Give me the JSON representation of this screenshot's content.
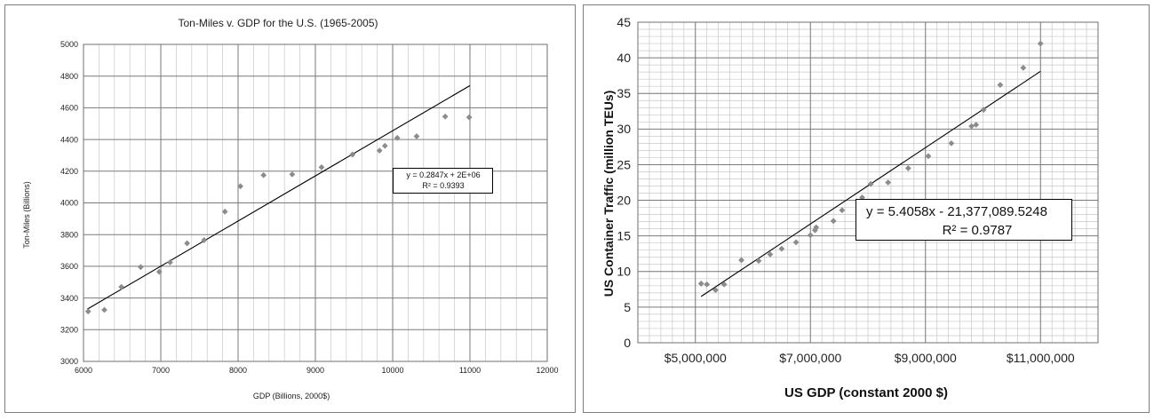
{
  "chart_data": [
    {
      "type": "scatter",
      "title": "Ton-Miles v. GDP for the U.S. (1965-2005)",
      "xlabel": "GDP (Billions, 2000$)",
      "ylabel": "Ton-Miles (Billions)",
      "xlim": [
        6000,
        12000
      ],
      "ylim": [
        3000,
        5000
      ],
      "x_ticks": [
        6000,
        7000,
        8000,
        9000,
        10000,
        11000,
        12000
      ],
      "y_ticks": [
        3000,
        3200,
        3400,
        3600,
        3800,
        4000,
        4200,
        4400,
        4600,
        4800,
        5000
      ],
      "x_tick_labels": [
        "6000",
        "7000",
        "8000",
        "9000",
        "10000",
        "11000",
        "12000"
      ],
      "y_tick_labels": [
        "3000",
        "3200",
        "3400",
        "3600",
        "3800",
        "4000",
        "4200",
        "4400",
        "4600",
        "4800",
        "5000"
      ],
      "grid": true,
      "marker_color": "#8c8c8c",
      "series": [
        {
          "x": [
            6060,
            6270,
            6490,
            6740,
            6980,
            7120,
            7340,
            7560,
            7830,
            8030,
            8330,
            8700,
            9080,
            9480,
            9830,
            9900,
            10060,
            10310,
            10680,
            10990
          ],
          "y": [
            3315,
            3325,
            3470,
            3595,
            3565,
            3625,
            3745,
            3765,
            3945,
            4105,
            4175,
            4180,
            4225,
            4305,
            4330,
            4360,
            4410,
            4420,
            4545,
            4540
          ]
        }
      ],
      "trendline": {
        "x": [
          6050,
          11000
        ],
        "y": [
          3330,
          4740
        ],
        "color": "#000000"
      },
      "annotation": {
        "equation": "y = 0.2847x + 2E+06",
        "r2": "R² = 0.9393"
      }
    },
    {
      "type": "scatter",
      "title": "",
      "xlabel": "US GDP (constant 2000 $)",
      "ylabel": "US Container Traffic (million TEUs)",
      "xlim": [
        4000000,
        12000000
      ],
      "ylim": [
        0,
        45
      ],
      "x_ticks": [
        5000000,
        7000000,
        9000000,
        11000000
      ],
      "y_ticks": [
        0,
        5,
        10,
        15,
        20,
        25,
        30,
        35,
        40,
        45
      ],
      "x_tick_labels": [
        "$5,000,000",
        "$7,000,000",
        "$9,000,000",
        "$11,000,000"
      ],
      "y_tick_labels": [
        "0",
        "5",
        "10",
        "15",
        "20",
        "25",
        "30",
        "35",
        "40",
        "45"
      ],
      "grid": true,
      "marker_color": "#8c8c8c",
      "series": [
        {
          "x": [
            5100000,
            5200000,
            5350000,
            5500000,
            5800000,
            6100000,
            6300000,
            6500000,
            6750000,
            7000000,
            7080000,
            7100000,
            7400000,
            7550000,
            7900000,
            8050000,
            8350000,
            8700000,
            9050000,
            9450000,
            9800000,
            9880000,
            10010000,
            10300000,
            10700000,
            11000000
          ],
          "y": [
            8.3,
            8.2,
            7.4,
            8.2,
            11.6,
            11.5,
            12.4,
            13.2,
            14.1,
            15.1,
            15.8,
            16.2,
            17.1,
            18.6,
            20.4,
            22.3,
            22.5,
            24.5,
            26.2,
            28.0,
            30.4,
            30.6,
            32.7,
            36.2,
            38.6,
            42.0
          ]
        }
      ],
      "trendline": {
        "x": [
          5100000,
          11000000
        ],
        "y": [
          6.5,
          38.1
        ],
        "color": "#000000"
      },
      "annotation": {
        "equation": "y = 5.4058x - 21,377,089.5248",
        "r2": "R² = 0.9787"
      }
    }
  ]
}
